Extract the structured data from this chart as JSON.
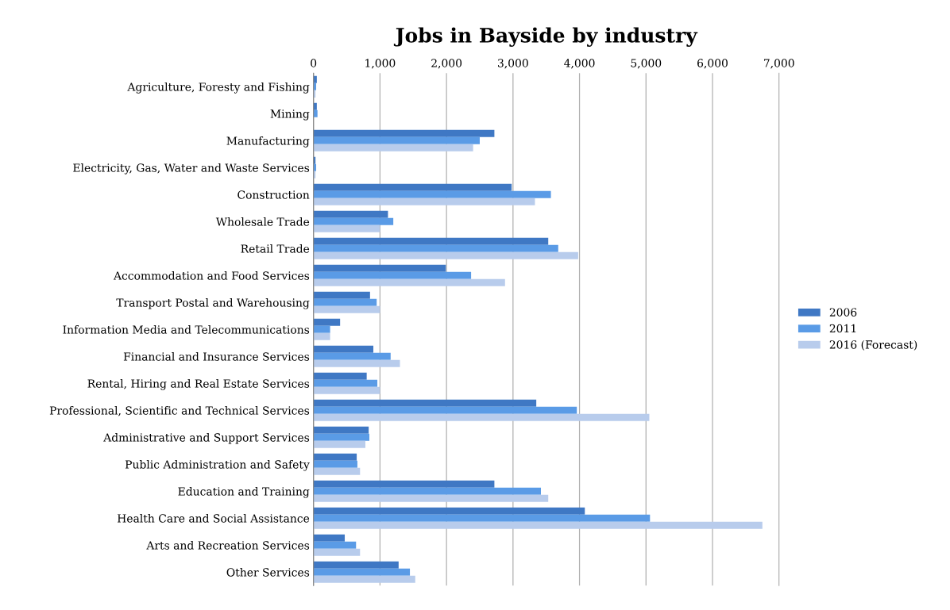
{
  "chart_data": {
    "type": "bar",
    "orientation": "horizontal",
    "title": "Jobs in Bayside by industry",
    "categories": [
      "Agriculture, Foresty and Fishing",
      "Mining",
      "Manufacturing",
      "Electricity, Gas, Water and Waste Services",
      "Construction",
      "Wholesale Trade",
      "Retail Trade",
      "Accommodation and Food Services",
      "Transport Postal and Warehousing",
      "Information Media and Telecommunications",
      "Financial and Insurance Services",
      "Rental, Hiring and Real Estate Services",
      "Professional, Scientific and Technical Services",
      "Administrative and Support Services",
      "Public Administration and Safety",
      "Education and Training",
      "Health Care and Social Assistance",
      "Arts and Recreation Services",
      "Other Services"
    ],
    "series": [
      {
        "name": "2006",
        "color": "#3f78c4",
        "values": [
          50,
          50,
          2720,
          30,
          2980,
          1120,
          3530,
          1990,
          850,
          400,
          900,
          800,
          3350,
          830,
          650,
          2720,
          4080,
          470,
          1280
        ]
      },
      {
        "name": "2011",
        "color": "#5a9be6",
        "values": [
          40,
          60,
          2500,
          40,
          3570,
          1200,
          3680,
          2370,
          950,
          250,
          1160,
          960,
          3960,
          840,
          660,
          3420,
          5060,
          640,
          1450
        ]
      },
      {
        "name": "2016 (Forecast)",
        "color": "#b8ccec",
        "values": [
          30,
          null,
          2400,
          30,
          3330,
          1000,
          3980,
          2880,
          1000,
          250,
          1300,
          1000,
          5050,
          780,
          700,
          3530,
          6750,
          700,
          1530
        ]
      }
    ],
    "xlim": [
      0,
      7000
    ],
    "xticks": [
      {
        "value": 0,
        "label": "0"
      },
      {
        "value": 1000,
        "label": "1,000"
      },
      {
        "value": 2000,
        "label": "2,000"
      },
      {
        "value": 3000,
        "label": "3,000"
      },
      {
        "value": 4000,
        "label": "4,000"
      },
      {
        "value": 5000,
        "label": "5,000"
      },
      {
        "value": 6000,
        "label": "6,000"
      },
      {
        "value": 7000,
        "label": "7,000"
      }
    ],
    "grid": "x",
    "legend": "right"
  }
}
